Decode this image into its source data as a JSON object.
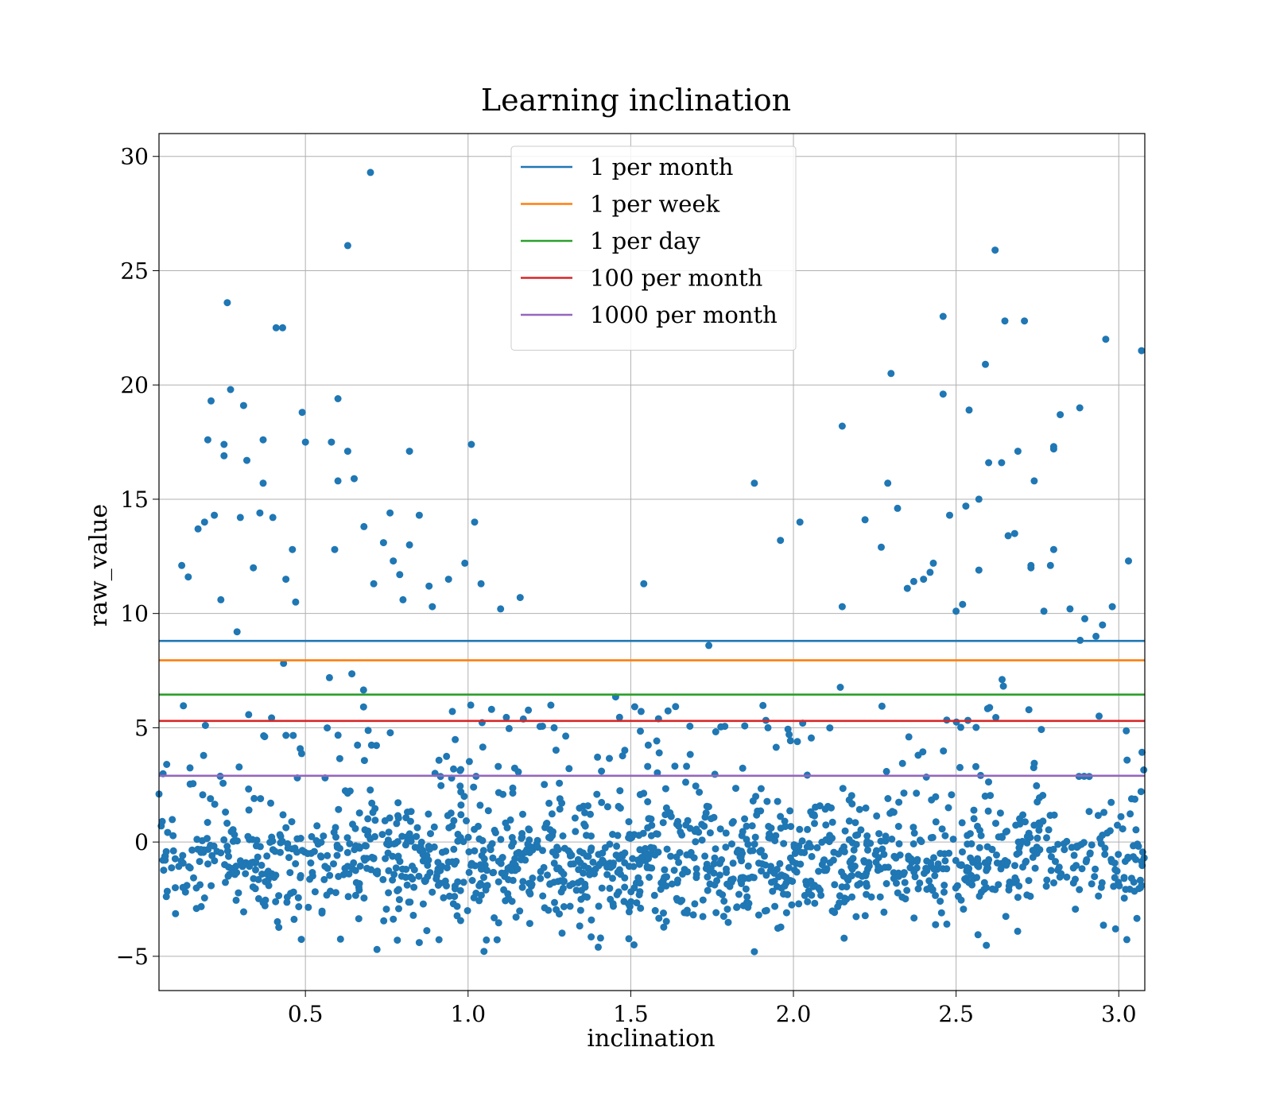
{
  "chart_data": {
    "type": "scatter",
    "title": "Learning inclination",
    "xlabel": "inclination",
    "ylabel": "raw_value",
    "xlim": [
      0.05,
      3.08
    ],
    "ylim": [
      -6.5,
      31
    ],
    "xticks": [
      0.5,
      1.0,
      1.5,
      2.0,
      2.5,
      3.0
    ],
    "xtick_labels": [
      "0.5",
      "1.0",
      "1.5",
      "2.0",
      "2.5",
      "3.0"
    ],
    "yticks": [
      -5,
      0,
      5,
      10,
      15,
      20,
      25,
      30
    ],
    "ytick_labels": [
      "−5",
      "0",
      "5",
      "10",
      "15",
      "20",
      "25",
      "30"
    ],
    "grid": true,
    "legend_position": "top-center",
    "point_color": "#1f77b4",
    "lines": [
      {
        "name": "1 per month",
        "y": 8.8,
        "color": "#1f77b4"
      },
      {
        "name": "1 per week",
        "y": 7.95,
        "color": "#ff7f0e"
      },
      {
        "name": "1 per day",
        "y": 6.45,
        "color": "#2ca02c"
      },
      {
        "name": "100 per month",
        "y": 5.3,
        "color": "#d62728"
      },
      {
        "name": "1000 per month",
        "y": 2.9,
        "color": "#9467bd"
      }
    ],
    "outliers": [
      [
        0.05,
        2.1
      ],
      [
        0.06,
        0.9
      ],
      [
        0.1,
        -2.0
      ],
      [
        0.12,
        12.1
      ],
      [
        0.14,
        11.6
      ],
      [
        0.17,
        13.7
      ],
      [
        0.19,
        14.0
      ],
      [
        0.2,
        17.6
      ],
      [
        0.21,
        19.3
      ],
      [
        0.22,
        14.3
      ],
      [
        0.24,
        10.6
      ],
      [
        0.25,
        16.9
      ],
      [
        0.25,
        17.4
      ],
      [
        0.26,
        23.6
      ],
      [
        0.27,
        19.8
      ],
      [
        0.29,
        9.2
      ],
      [
        0.3,
        14.2
      ],
      [
        0.31,
        19.1
      ],
      [
        0.32,
        16.7
      ],
      [
        0.34,
        12.0
      ],
      [
        0.36,
        14.4
      ],
      [
        0.37,
        17.6
      ],
      [
        0.37,
        15.7
      ],
      [
        0.4,
        14.2
      ],
      [
        0.41,
        22.5
      ],
      [
        0.43,
        22.5
      ],
      [
        0.44,
        11.5
      ],
      [
        0.46,
        12.8
      ],
      [
        0.47,
        10.5
      ],
      [
        0.49,
        18.8
      ],
      [
        0.5,
        17.5
      ],
      [
        0.58,
        17.5
      ],
      [
        0.59,
        12.8
      ],
      [
        0.6,
        19.4
      ],
      [
        0.6,
        15.8
      ],
      [
        0.63,
        26.1
      ],
      [
        0.63,
        17.1
      ],
      [
        0.65,
        15.9
      ],
      [
        0.68,
        13.8
      ],
      [
        0.7,
        29.3
      ],
      [
        0.71,
        11.3
      ],
      [
        0.74,
        13.1
      ],
      [
        0.76,
        14.4
      ],
      [
        0.77,
        12.3
      ],
      [
        0.79,
        11.7
      ],
      [
        0.8,
        10.6
      ],
      [
        0.82,
        13.0
      ],
      [
        0.82,
        17.1
      ],
      [
        0.85,
        14.3
      ],
      [
        0.88,
        11.2
      ],
      [
        0.89,
        10.3
      ],
      [
        0.94,
        11.5
      ],
      [
        0.99,
        12.2
      ],
      [
        1.01,
        17.4
      ],
      [
        1.02,
        14.0
      ],
      [
        1.04,
        11.3
      ],
      [
        1.1,
        10.2
      ],
      [
        1.16,
        10.7
      ],
      [
        1.54,
        11.3
      ],
      [
        1.74,
        8.6
      ],
      [
        1.88,
        15.7
      ],
      [
        1.96,
        13.2
      ],
      [
        2.02,
        14.0
      ],
      [
        2.15,
        18.2
      ],
      [
        2.15,
        10.3
      ],
      [
        2.22,
        14.1
      ],
      [
        2.27,
        12.9
      ],
      [
        2.29,
        15.7
      ],
      [
        2.3,
        20.5
      ],
      [
        2.32,
        14.6
      ],
      [
        2.35,
        11.1
      ],
      [
        2.37,
        11.4
      ],
      [
        2.4,
        11.5
      ],
      [
        2.42,
        11.8
      ],
      [
        2.43,
        12.2
      ],
      [
        2.46,
        23.0
      ],
      [
        2.46,
        19.6
      ],
      [
        2.48,
        14.3
      ],
      [
        2.5,
        10.1
      ],
      [
        2.52,
        10.4
      ],
      [
        2.53,
        14.7
      ],
      [
        2.54,
        18.9
      ],
      [
        2.57,
        15.0
      ],
      [
        2.57,
        11.9
      ],
      [
        2.59,
        20.9
      ],
      [
        2.6,
        16.6
      ],
      [
        2.62,
        25.9
      ],
      [
        2.64,
        16.6
      ],
      [
        2.65,
        22.8
      ],
      [
        2.66,
        13.4
      ],
      [
        2.68,
        13.5
      ],
      [
        2.69,
        17.1
      ],
      [
        2.71,
        22.8
      ],
      [
        2.73,
        12.1
      ],
      [
        2.73,
        12.0
      ],
      [
        2.74,
        15.8
      ],
      [
        2.77,
        10.1
      ],
      [
        2.79,
        12.1
      ],
      [
        2.8,
        17.3
      ],
      [
        2.8,
        17.2
      ],
      [
        2.8,
        12.8
      ],
      [
        2.82,
        18.7
      ],
      [
        2.85,
        10.2
      ],
      [
        2.88,
        19.0
      ],
      [
        2.93,
        9.0
      ],
      [
        2.95,
        9.5
      ],
      [
        2.96,
        22.0
      ],
      [
        2.98,
        10.3
      ],
      [
        3.03,
        12.3
      ],
      [
        3.07,
        21.5
      ],
      [
        3.07,
        -1.9
      ],
      [
        2.99,
        -3.8
      ],
      [
        1.88,
        -4.8
      ],
      [
        0.72,
        -4.7
      ],
      [
        1.4,
        -4.6
      ],
      [
        1.51,
        -4.5
      ],
      [
        0.85,
        -4.4
      ]
    ],
    "series": [
      {
        "name": "",
        "generated_points": 1800,
        "x_range": [
          0.05,
          3.08
        ],
        "y_core_range": [
          -4.8,
          3.0
        ],
        "y_upper_tail_max": 9.5
      }
    ]
  }
}
